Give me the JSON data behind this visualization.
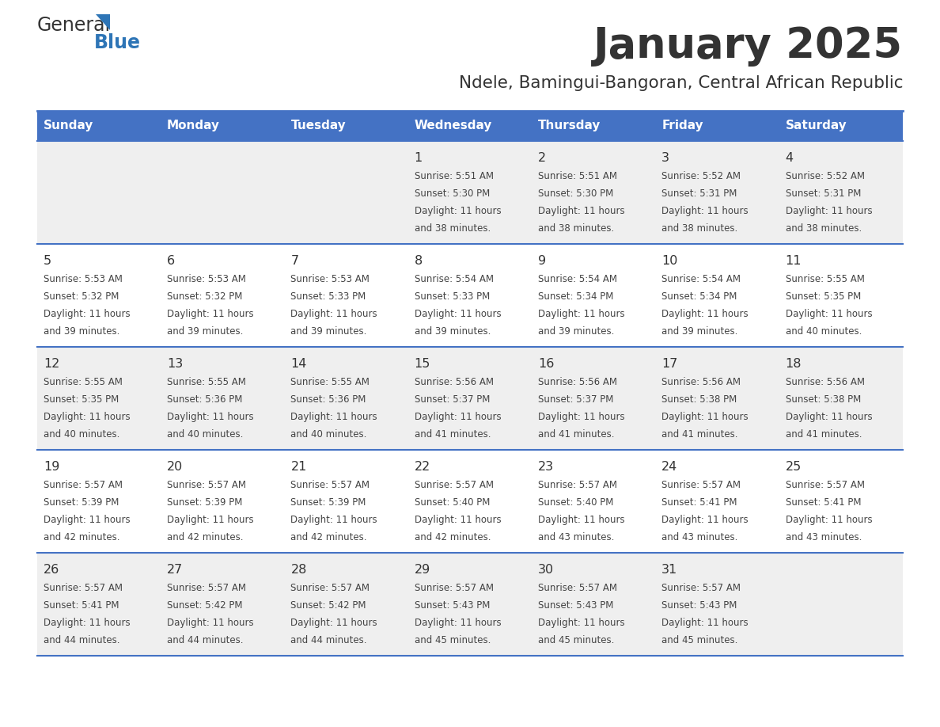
{
  "title": "January 2025",
  "subtitle": "Ndele, Bamingui-Bangoran, Central African Republic",
  "days_of_week": [
    "Sunday",
    "Monday",
    "Tuesday",
    "Wednesday",
    "Thursday",
    "Friday",
    "Saturday"
  ],
  "header_bg": "#4472C4",
  "header_text": "#FFFFFF",
  "row_bg_odd": "#EFEFEF",
  "row_bg_even": "#FFFFFF",
  "cell_text_color": "#444444",
  "day_number_color": "#333333",
  "border_color": "#4472C4",
  "calendar_data": [
    [
      null,
      null,
      null,
      {
        "day": 1,
        "sunrise": "5:51 AM",
        "sunset": "5:30 PM",
        "daylight": "11 hours and 38 minutes."
      },
      {
        "day": 2,
        "sunrise": "5:51 AM",
        "sunset": "5:30 PM",
        "daylight": "11 hours and 38 minutes."
      },
      {
        "day": 3,
        "sunrise": "5:52 AM",
        "sunset": "5:31 PM",
        "daylight": "11 hours and 38 minutes."
      },
      {
        "day": 4,
        "sunrise": "5:52 AM",
        "sunset": "5:31 PM",
        "daylight": "11 hours and 38 minutes."
      }
    ],
    [
      {
        "day": 5,
        "sunrise": "5:53 AM",
        "sunset": "5:32 PM",
        "daylight": "11 hours and 39 minutes."
      },
      {
        "day": 6,
        "sunrise": "5:53 AM",
        "sunset": "5:32 PM",
        "daylight": "11 hours and 39 minutes."
      },
      {
        "day": 7,
        "sunrise": "5:53 AM",
        "sunset": "5:33 PM",
        "daylight": "11 hours and 39 minutes."
      },
      {
        "day": 8,
        "sunrise": "5:54 AM",
        "sunset": "5:33 PM",
        "daylight": "11 hours and 39 minutes."
      },
      {
        "day": 9,
        "sunrise": "5:54 AM",
        "sunset": "5:34 PM",
        "daylight": "11 hours and 39 minutes."
      },
      {
        "day": 10,
        "sunrise": "5:54 AM",
        "sunset": "5:34 PM",
        "daylight": "11 hours and 39 minutes."
      },
      {
        "day": 11,
        "sunrise": "5:55 AM",
        "sunset": "5:35 PM",
        "daylight": "11 hours and 40 minutes."
      }
    ],
    [
      {
        "day": 12,
        "sunrise": "5:55 AM",
        "sunset": "5:35 PM",
        "daylight": "11 hours and 40 minutes."
      },
      {
        "day": 13,
        "sunrise": "5:55 AM",
        "sunset": "5:36 PM",
        "daylight": "11 hours and 40 minutes."
      },
      {
        "day": 14,
        "sunrise": "5:55 AM",
        "sunset": "5:36 PM",
        "daylight": "11 hours and 40 minutes."
      },
      {
        "day": 15,
        "sunrise": "5:56 AM",
        "sunset": "5:37 PM",
        "daylight": "11 hours and 41 minutes."
      },
      {
        "day": 16,
        "sunrise": "5:56 AM",
        "sunset": "5:37 PM",
        "daylight": "11 hours and 41 minutes."
      },
      {
        "day": 17,
        "sunrise": "5:56 AM",
        "sunset": "5:38 PM",
        "daylight": "11 hours and 41 minutes."
      },
      {
        "day": 18,
        "sunrise": "5:56 AM",
        "sunset": "5:38 PM",
        "daylight": "11 hours and 41 minutes."
      }
    ],
    [
      {
        "day": 19,
        "sunrise": "5:57 AM",
        "sunset": "5:39 PM",
        "daylight": "11 hours and 42 minutes."
      },
      {
        "day": 20,
        "sunrise": "5:57 AM",
        "sunset": "5:39 PM",
        "daylight": "11 hours and 42 minutes."
      },
      {
        "day": 21,
        "sunrise": "5:57 AM",
        "sunset": "5:39 PM",
        "daylight": "11 hours and 42 minutes."
      },
      {
        "day": 22,
        "sunrise": "5:57 AM",
        "sunset": "5:40 PM",
        "daylight": "11 hours and 42 minutes."
      },
      {
        "day": 23,
        "sunrise": "5:57 AM",
        "sunset": "5:40 PM",
        "daylight": "11 hours and 43 minutes."
      },
      {
        "day": 24,
        "sunrise": "5:57 AM",
        "sunset": "5:41 PM",
        "daylight": "11 hours and 43 minutes."
      },
      {
        "day": 25,
        "sunrise": "5:57 AM",
        "sunset": "5:41 PM",
        "daylight": "11 hours and 43 minutes."
      }
    ],
    [
      {
        "day": 26,
        "sunrise": "5:57 AM",
        "sunset": "5:41 PM",
        "daylight": "11 hours and 44 minutes."
      },
      {
        "day": 27,
        "sunrise": "5:57 AM",
        "sunset": "5:42 PM",
        "daylight": "11 hours and 44 minutes."
      },
      {
        "day": 28,
        "sunrise": "5:57 AM",
        "sunset": "5:42 PM",
        "daylight": "11 hours and 44 minutes."
      },
      {
        "day": 29,
        "sunrise": "5:57 AM",
        "sunset": "5:43 PM",
        "daylight": "11 hours and 45 minutes."
      },
      {
        "day": 30,
        "sunrise": "5:57 AM",
        "sunset": "5:43 PM",
        "daylight": "11 hours and 45 minutes."
      },
      {
        "day": 31,
        "sunrise": "5:57 AM",
        "sunset": "5:43 PM",
        "daylight": "11 hours and 45 minutes."
      },
      null
    ]
  ],
  "logo_color_general": "#333333",
  "logo_color_blue": "#2E75B6",
  "logo_triangle_color": "#2E75B6"
}
